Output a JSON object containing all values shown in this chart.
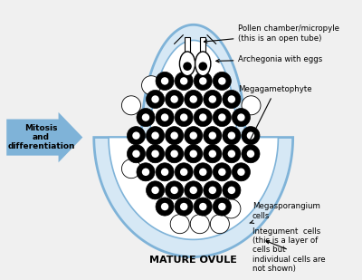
{
  "title": "MATURE OVULE",
  "arrow_label": "Mitosis\nand\ndifferentiation",
  "arrow_color": "#7fb3d8",
  "label_pollen": "Pollen chamber/micropyle\n(this is an open tube)",
  "label_archegonia": "Archegonia with eggs",
  "label_mega": "Megagametophyte",
  "label_megaspor": "Megasporangium\ncells",
  "label_integ": "Integument  cells\n(this is a layer of\ncells but\nindividual cells are\nnot shown)",
  "background_color": "#f0f0f0",
  "ovule_outer_color": "#aac8e0",
  "ovule_inner_color": "#c8dff0"
}
